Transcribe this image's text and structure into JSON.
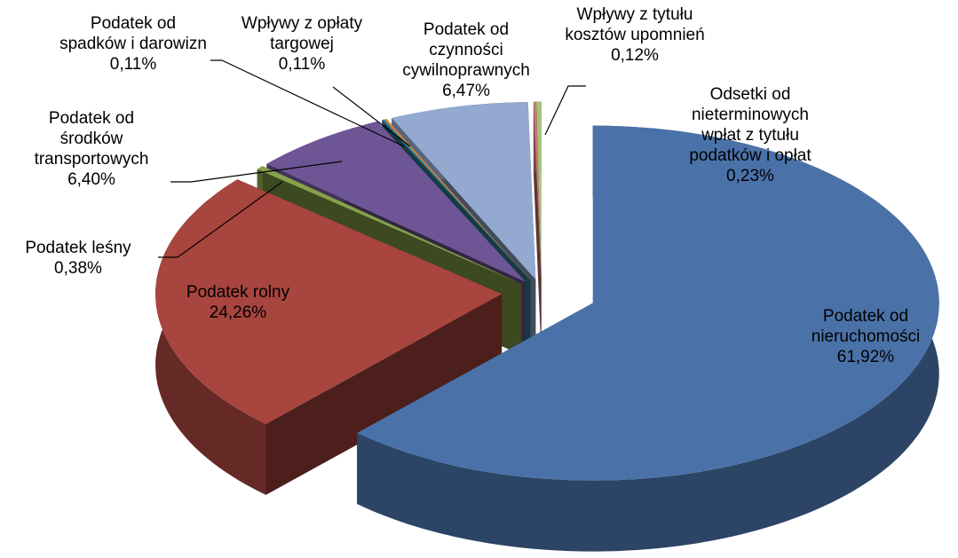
{
  "chart_data": {
    "type": "pie",
    "categories": [
      "Podatek od\nnieruchomości",
      "Podatek rolny",
      "Podatek leśny",
      "Podatek od\nśrodków\ntransportowych",
      "Podatek od\nspadków i darowizn",
      "Wpływy z opłaty\ntargowej",
      "Podatek od\nczynności\ncywilnoprawnych",
      "Wpływy z tytułu\nkosztów upomnień",
      "Odsetki od\nnieterminowych\nwpłat z tytułu\npodatków i opłat"
    ],
    "values": [
      61.92,
      24.26,
      0.38,
      6.4,
      0.11,
      0.11,
      6.47,
      0.12,
      0.23
    ],
    "value_labels": [
      "61,92%",
      "24,26%",
      "0,38%",
      "6,40%",
      "0,11%",
      "0,11%",
      "6,47%",
      "0,12%",
      "0,23%"
    ],
    "colors": [
      "#4a72a8",
      "#a8453f",
      "#86a24a",
      "#6e5595",
      "#2f8197",
      "#d9853d",
      "#93a9cf",
      "#c9787a",
      "#a9c27a"
    ]
  }
}
